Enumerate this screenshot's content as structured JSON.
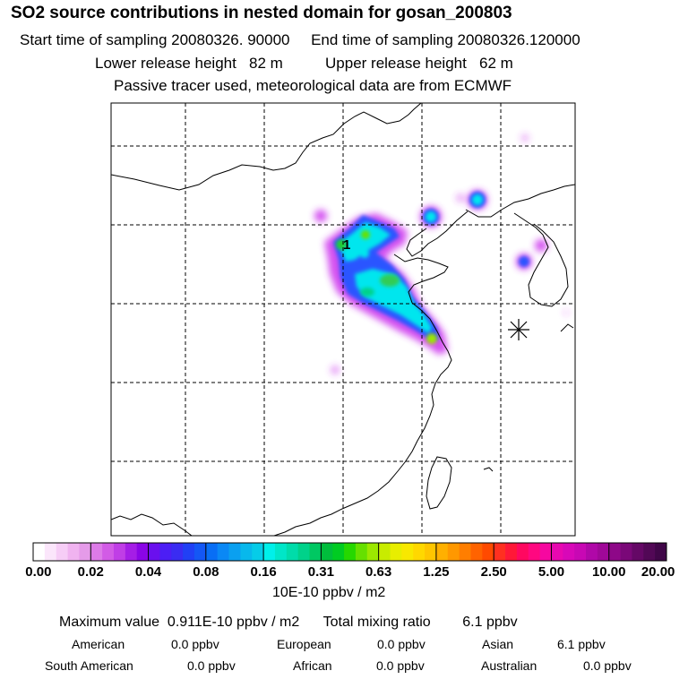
{
  "header": {
    "title": "SO2 source contributions in nested domain for gosan_200803",
    "line1": "Start time of sampling 20080326. 90000     End time of sampling 20080326.120000",
    "line2": "Lower release height   82 m          Upper release height   62 m",
    "line3": "Passive tracer used, meteorological data are from ECMWF"
  },
  "map": {
    "release_marker": "1",
    "station_marker": "receptor-star"
  },
  "colorbar": {
    "tick_labels": [
      "0.00",
      "0.02",
      "0.04",
      "0.08",
      "0.16",
      "0.31",
      "0.63",
      "1.25",
      "2.50",
      "5.00",
      "10.00",
      "20.00"
    ],
    "colors": [
      "#ffffff",
      "#fbe6fb",
      "#f6cdf6",
      "#f0b3f0",
      "#e59be9",
      "#dd7be8",
      "#d25be6",
      "#c03ee6",
      "#a51ee6",
      "#8a05e6",
      "#6a10ee",
      "#4c1ef5",
      "#3a2cf2",
      "#2140f5",
      "#1457f5",
      "#086ef5",
      "#0a88f5",
      "#0aa0f0",
      "#08b8ec",
      "#06cce8",
      "#00f0ea",
      "#00e6c8",
      "#00dcaa",
      "#00d28a",
      "#00c862",
      "#00be3c",
      "#00cc22",
      "#26d800",
      "#66e000",
      "#9ce800",
      "#c8ec00",
      "#e8ee00",
      "#f8e800",
      "#ffd800",
      "#ffc600",
      "#ffb000",
      "#ff9800",
      "#ff7e00",
      "#ff6300",
      "#ff4a00",
      "#ff3020",
      "#ff1838",
      "#ff0860",
      "#ff0880",
      "#f608a0",
      "#e808b0",
      "#d808b8",
      "#c808b4",
      "#b008a8",
      "#a00898",
      "#8e0888",
      "#7a0878",
      "#650866",
      "#520856",
      "#400648"
    ],
    "units": "10E-10 ppbv / m2"
  },
  "summary": {
    "max_line": "Maximum value  0.911E-10 ppbv / m2      Total mixing ratio        6.1 ppbv",
    "regions": [
      {
        "name": "American",
        "value": "0.0 ppbv"
      },
      {
        "name": "European",
        "value": "0.0 ppbv"
      },
      {
        "name": "Asian",
        "value": "6.1 ppbv"
      },
      {
        "name": "South American",
        "value": "0.0 ppbv"
      },
      {
        "name": "African",
        "value": "0.0 ppbv"
      },
      {
        "name": "Australian",
        "value": "0.0 ppbv"
      }
    ]
  }
}
